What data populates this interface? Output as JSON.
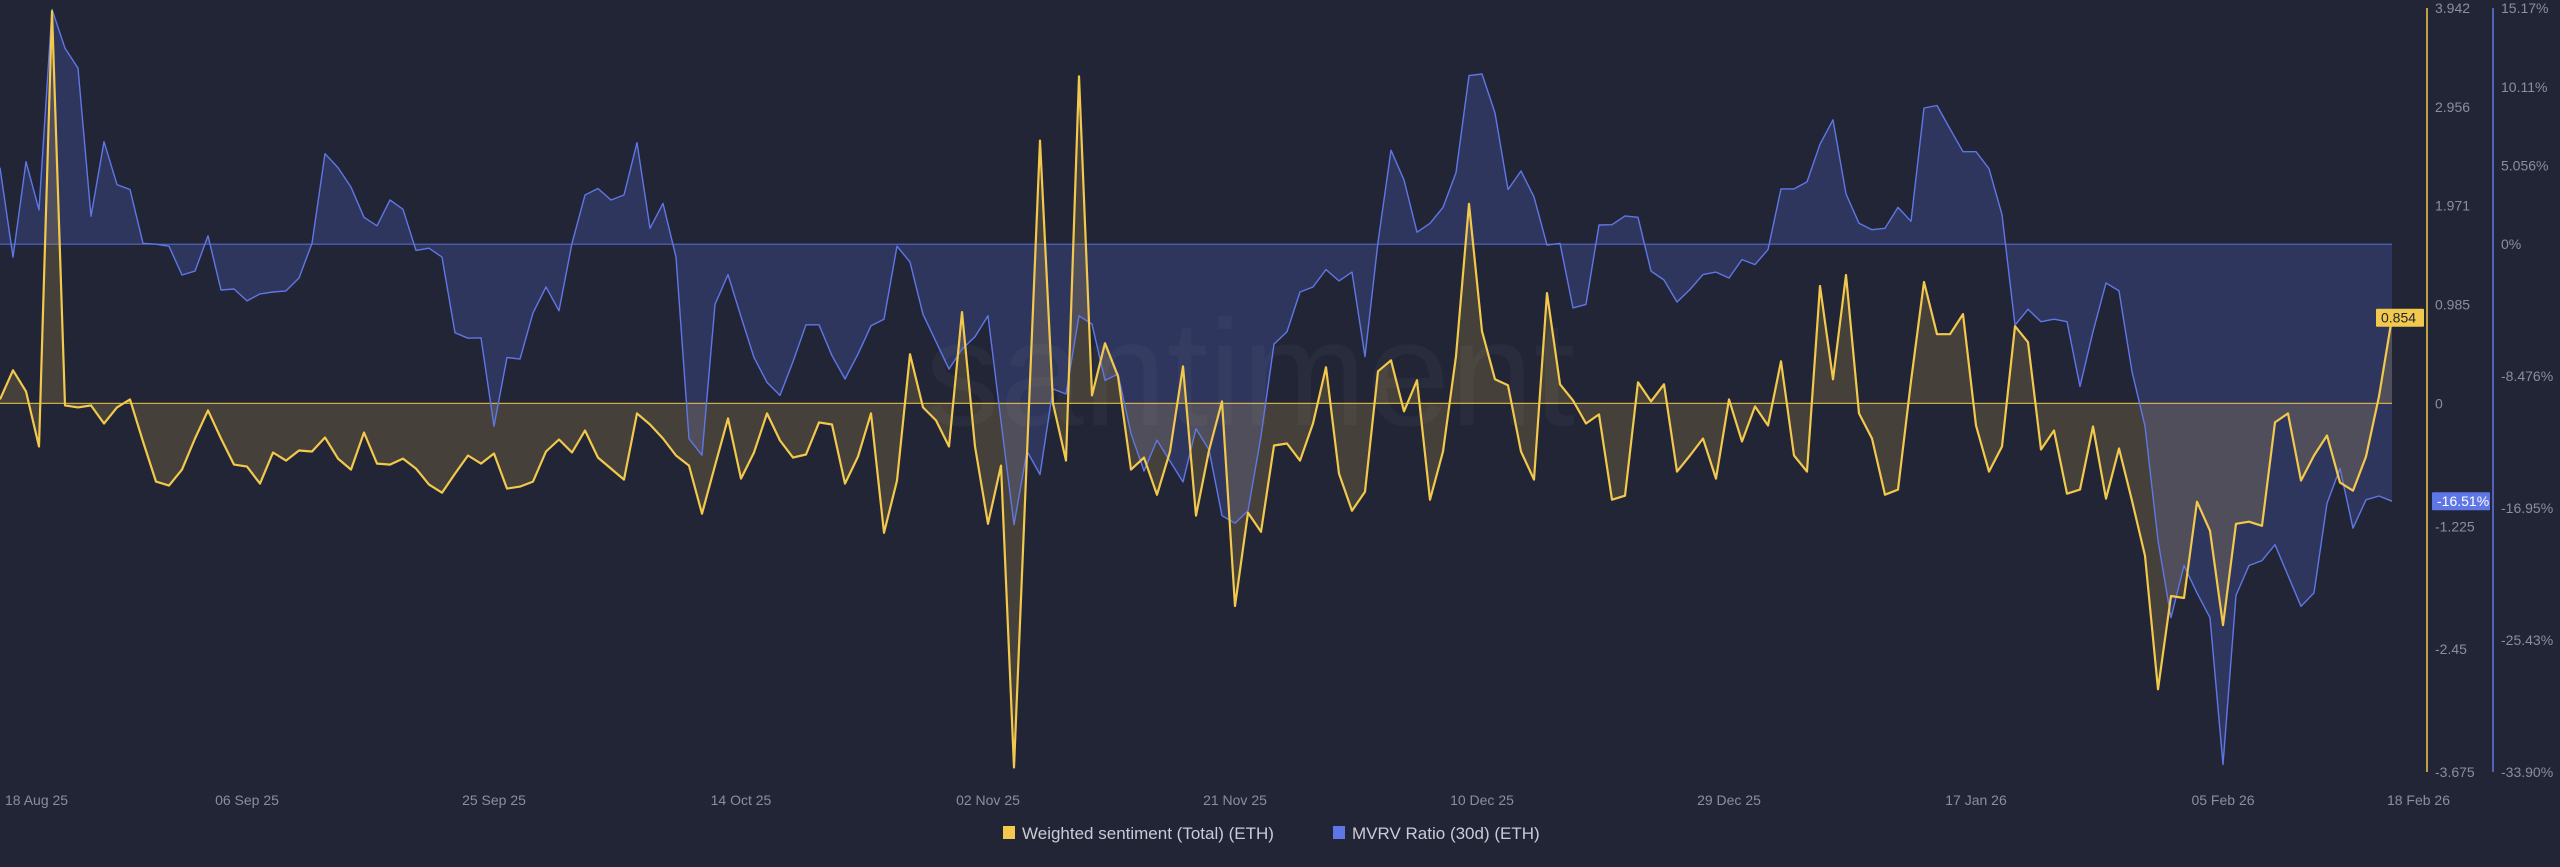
{
  "watermark": "santiment",
  "colors": {
    "background": "#222536",
    "sentiment": "#f2c94c",
    "mvrv": "#5f77e6",
    "tick_text": "#8b8e9e"
  },
  "chart_data": {
    "type": "line",
    "fill": "area-to-zero",
    "grid": false,
    "legend_placement": "bottom-center",
    "x_ticks": [
      {
        "label": "18 Aug 25",
        "date": "2025-08-18"
      },
      {
        "label": "06 Sep 25",
        "date": "2025-09-06"
      },
      {
        "label": "25 Sep 25",
        "date": "2025-09-25"
      },
      {
        "label": "14 Oct 25",
        "date": "2025-10-14"
      },
      {
        "label": "02 Nov 25",
        "date": "2025-11-02"
      },
      {
        "label": "21 Nov 25",
        "date": "2025-11-21"
      },
      {
        "label": "10 Dec 25",
        "date": "2025-12-10"
      },
      {
        "label": "29 Dec 25",
        "date": "2025-12-29"
      },
      {
        "label": "17 Jan 26",
        "date": "2026-01-17"
      },
      {
        "label": "05 Feb 26",
        "date": "2026-02-05"
      },
      {
        "label": "18 Feb 26",
        "date": "2026-02-18"
      }
    ],
    "x_range": [
      "2025-08-18",
      "2026-02-18"
    ],
    "axes": [
      {
        "id": "sentiment",
        "side": "right",
        "range": [
          -3.675,
          3.942
        ],
        "ticks": [
          {
            "v": 3.942,
            "label": "3.942"
          },
          {
            "v": 2.956,
            "label": "2.956"
          },
          {
            "v": 1.971,
            "label": "1.971"
          },
          {
            "v": 0.985,
            "label": "0.985"
          },
          {
            "v": 0,
            "label": "0"
          },
          {
            "v": -1.225,
            "label": "-1.225"
          },
          {
            "v": -2.45,
            "label": "-2.45"
          },
          {
            "v": -3.675,
            "label": "-3.675"
          }
        ]
      },
      {
        "id": "mvrv",
        "side": "right",
        "range": [
          -33.9,
          15.17
        ],
        "ticks": [
          {
            "v": 15.17,
            "label": "15.17%"
          },
          {
            "v": 10.11,
            "label": "10.11%"
          },
          {
            "v": 5.056,
            "label": "5.056%"
          },
          {
            "v": 0,
            "label": "0%"
          },
          {
            "v": -8.476,
            "label": "-8.476%"
          },
          {
            "v": -16.95,
            "label": "-16.95%"
          },
          {
            "v": -25.43,
            "label": "-25.43%"
          },
          {
            "v": -33.9,
            "label": "-33.90%"
          }
        ]
      }
    ],
    "series": [
      {
        "name": "Weighted sentiment (Total) (ETH)",
        "axis": "sentiment",
        "color": "#f2c94c",
        "last_value_label": "0.854",
        "values": [
          0.04,
          0.33,
          0.12,
          -0.43,
          3.91,
          -0.02,
          -0.04,
          -0.02,
          -0.2,
          -0.04,
          0.04,
          -0.38,
          -0.78,
          -0.82,
          -0.66,
          -0.35,
          -0.07,
          -0.35,
          -0.61,
          -0.63,
          -0.8,
          -0.49,
          -0.57,
          -0.47,
          -0.48,
          -0.34,
          -0.55,
          -0.66,
          -0.29,
          -0.6,
          -0.61,
          -0.55,
          -0.65,
          -0.81,
          -0.89,
          -0.7,
          -0.52,
          -0.6,
          -0.5,
          -0.85,
          -0.83,
          -0.78,
          -0.48,
          -0.36,
          -0.49,
          -0.27,
          -0.54,
          -0.65,
          -0.76,
          -0.1,
          -0.21,
          -0.35,
          -0.52,
          -0.62,
          -1.1,
          -0.62,
          -0.15,
          -0.75,
          -0.49,
          -0.1,
          -0.37,
          -0.54,
          -0.51,
          -0.19,
          -0.21,
          -0.8,
          -0.53,
          -0.1,
          -1.29,
          -0.77,
          0.49,
          -0.04,
          -0.17,
          -0.43,
          0.91,
          -0.43,
          -1.2,
          -0.62,
          -3.63,
          -0.5,
          2.62,
          0.0,
          -0.57,
          3.26,
          0.08,
          0.6,
          0.27,
          -0.66,
          -0.54,
          -0.91,
          -0.48,
          0.37,
          -1.12,
          -0.47,
          0.02,
          -2.02,
          -1.09,
          -1.28,
          -0.42,
          -0.4,
          -0.57,
          -0.2,
          0.36,
          -0.7,
          -1.07,
          -0.88,
          0.32,
          0.43,
          -0.08,
          0.23,
          -0.96,
          -0.48,
          0.47,
          1.99,
          0.72,
          0.24,
          0.18,
          -0.48,
          -0.76,
          1.1,
          0.19,
          0.03,
          -0.2,
          -0.11,
          -0.96,
          -0.92,
          0.21,
          0.02,
          0.19,
          -0.68,
          -0.52,
          -0.35,
          -0.75,
          0.04,
          -0.38,
          -0.03,
          -0.22,
          0.42,
          -0.52,
          -0.68,
          1.17,
          0.24,
          1.28,
          -0.1,
          -0.35,
          -0.91,
          -0.86,
          0.22,
          1.21,
          0.69,
          0.69,
          0.89,
          -0.22,
          -0.68,
          -0.43,
          0.77,
          0.61,
          -0.46,
          -0.27,
          -0.9,
          -0.86,
          -0.23,
          -0.95,
          -0.45,
          -0.97,
          -1.52,
          -2.85,
          -1.92,
          -1.94,
          -0.98,
          -1.27,
          -2.21,
          -1.2,
          -1.18,
          -1.22,
          -0.19,
          -0.1,
          -0.77,
          -0.52,
          -0.32,
          -0.79,
          -0.87,
          -0.53,
          0.07,
          0.854
        ]
      },
      {
        "name": "MVRV Ratio (30d) (ETH)",
        "axis": "mvrv",
        "color": "#5f77e6",
        "unit": "%",
        "last_value_label": "-16.51%",
        "values": [
          4.92,
          -0.83,
          5.3,
          2.2,
          15.08,
          12.59,
          11.31,
          1.79,
          6.58,
          3.83,
          3.51,
          0.06,
          0,
          -0.13,
          -1.98,
          -1.73,
          0.54,
          -2.94,
          -2.88,
          -3.64,
          -3.19,
          -3.07,
          -3.0,
          -2.17,
          0.06,
          5.81,
          4.92,
          3.67,
          1.73,
          1.18,
          2.84,
          2.24,
          -0.4,
          -0.26,
          -0.83,
          -5.69,
          -6.04,
          -6.01,
          -11.69,
          -7.28,
          -7.38,
          -4.41,
          -2.75,
          -4.28,
          0.06,
          3.16,
          3.58,
          2.84,
          3.16,
          6.52,
          1.02,
          2.62,
          -0.83,
          -12.49,
          -13.55,
          -3.87,
          -1.95,
          -4.66,
          -7.28,
          -8.88,
          -9.71,
          -7.54,
          -5.18,
          -5.18,
          -7.16,
          -8.66,
          -7.06,
          -5.24,
          -4.82,
          -0.13,
          -1.15,
          -4.5,
          -6.26,
          -8.02,
          -6.74,
          -5.94,
          -4.6,
          -11.37,
          -18.02,
          -13.29,
          -14.79,
          -9.3,
          -9.62,
          -4.6,
          -5.14,
          -8.75,
          -8.34,
          -12.17,
          -14.57,
          -12.59,
          -13.93,
          -15.27,
          -11.85,
          -13.2,
          -17.44,
          -17.92,
          -17.12,
          -12.33,
          -6.42,
          -5.62,
          -3.07,
          -2.75,
          -1.63,
          -2.36,
          -1.79,
          -7.22,
          0.13,
          6.04,
          4.12,
          0.77,
          1.34,
          2.36,
          4.6,
          10.83,
          10.93,
          8.43,
          3.51,
          4.7,
          3.04,
          -0.06,
          0.06,
          -4.09,
          -3.87,
          1.23,
          1.25,
          1.82,
          1.73,
          -1.73,
          -2.3,
          -3.71,
          -2.91,
          -1.95,
          -1.79,
          -2.17,
          -0.99,
          -1.31,
          -0.35,
          3.55,
          3.55,
          4.0,
          6.42,
          7.99,
          3.23,
          1.34,
          0.93,
          1.02,
          2.36,
          1.47,
          8.75,
          8.91,
          7.41,
          5.94,
          5.94,
          4.85,
          1.9,
          -5.2,
          -4.18,
          -4.98,
          -4.82,
          -4.98,
          -9.14,
          -5.62,
          -2.49,
          -3.0,
          -8.18,
          -11.69,
          -19.04,
          -23.99,
          -20.64,
          -22.4,
          -23.99,
          -33.42,
          -22.56,
          -20.64,
          -20.32,
          -19.3,
          -21.28,
          -23.26,
          -22.4,
          -16.65,
          -14.41,
          -18.24,
          -16.42,
          -16.17,
          -16.51
        ]
      }
    ],
    "x_frequency": "daily"
  }
}
